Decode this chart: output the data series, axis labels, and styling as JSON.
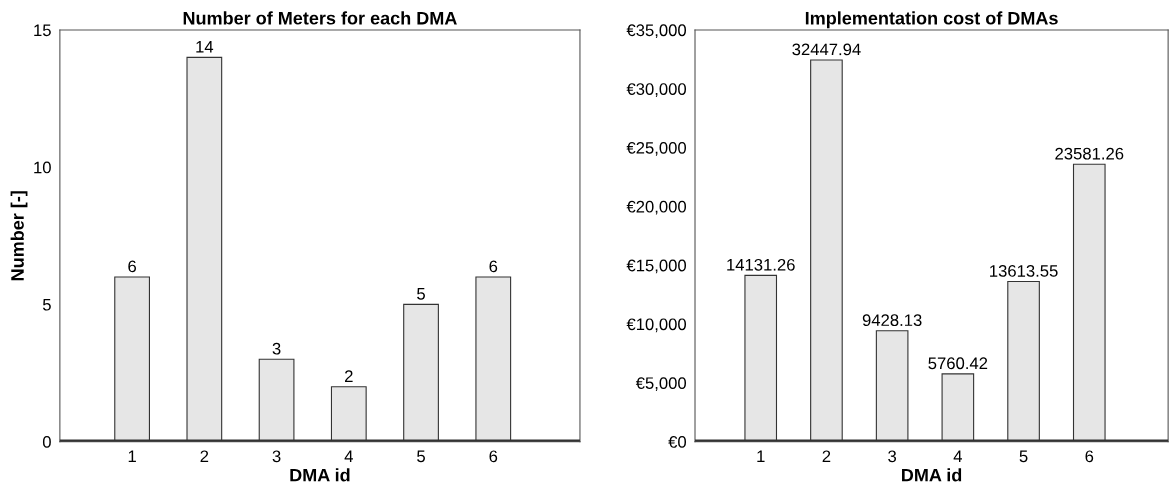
{
  "chart_data": [
    {
      "type": "bar",
      "title": "Number of Meters for each DMA",
      "xlabel": "DMA id",
      "ylabel": "Number [-]",
      "categories": [
        "1",
        "2",
        "3",
        "4",
        "5",
        "6"
      ],
      "values": [
        6,
        14,
        3,
        2,
        5,
        6
      ],
      "color": "#e6e6e6",
      "ylim": [
        0,
        15
      ],
      "yticks": [
        0,
        5,
        10,
        15
      ],
      "data_labels": true
    },
    {
      "type": "bar",
      "title": "Implementation cost of DMAs",
      "xlabel": "DMA id",
      "categories": [
        "1",
        "2",
        "3",
        "4",
        "5",
        "6"
      ],
      "values": [
        14131.26,
        32447.94,
        9428.13,
        5760.42,
        13613.55,
        23581.26
      ],
      "color": "#e6e6e6",
      "ylim": [
        0,
        35000
      ],
      "yticks": [
        {
          "value": 0,
          "label": "€0"
        },
        {
          "value": 5000,
          "label": "€5,000"
        },
        {
          "value": 10000,
          "label": "€10,000"
        },
        {
          "value": 15000,
          "label": "€15,000"
        },
        {
          "value": 20000,
          "label": "€20,000"
        },
        {
          "value": 25000,
          "label": "€25,000"
        },
        {
          "value": 30000,
          "label": "€30,000"
        },
        {
          "value": 35000,
          "label": "€35,000"
        }
      ],
      "data_labels": true
    }
  ]
}
